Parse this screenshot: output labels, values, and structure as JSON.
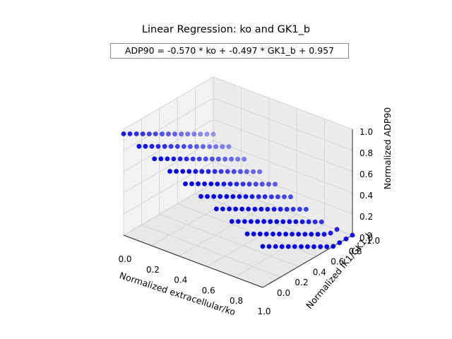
{
  "chart_data": {
    "type": "scatter",
    "title": "Linear Regression: ko and GK1_b",
    "equation": "ADP90 = -0.570 * ko + -0.497 * GK1_b + 0.957",
    "xlabel": "Normalized extracellular/ko",
    "ylabel": "Normalized IK1/GK1_b",
    "zlabel": "Normalized ADP90",
    "x_ticks": [
      "0.0",
      "0.2",
      "0.4",
      "0.6",
      "0.8",
      "1.0"
    ],
    "y_ticks": [
      "0.0",
      "0.2",
      "0.4",
      "0.6",
      "0.8",
      "1.0"
    ],
    "z_ticks": [
      "0.0",
      "0.2",
      "0.4",
      "0.6",
      "0.8",
      "1.0"
    ],
    "xlim": [
      0,
      1
    ],
    "ylim": [
      0,
      1
    ],
    "zlim": [
      0,
      1
    ],
    "grid": true,
    "model": {
      "coef_x": -0.57,
      "coef_y": -0.497,
      "intercept": 0.957
    },
    "grid_x_values": [
      0.0,
      0.111,
      0.222,
      0.333,
      0.444,
      0.556,
      0.667,
      0.778,
      0.889,
      1.0
    ],
    "grid_y_values": [
      0.0,
      0.071,
      0.143,
      0.214,
      0.286,
      0.357,
      0.429,
      0.5,
      0.571,
      0.643,
      0.714,
      0.786,
      0.857,
      0.929,
      1.0
    ],
    "point_color": "#0000ff"
  }
}
